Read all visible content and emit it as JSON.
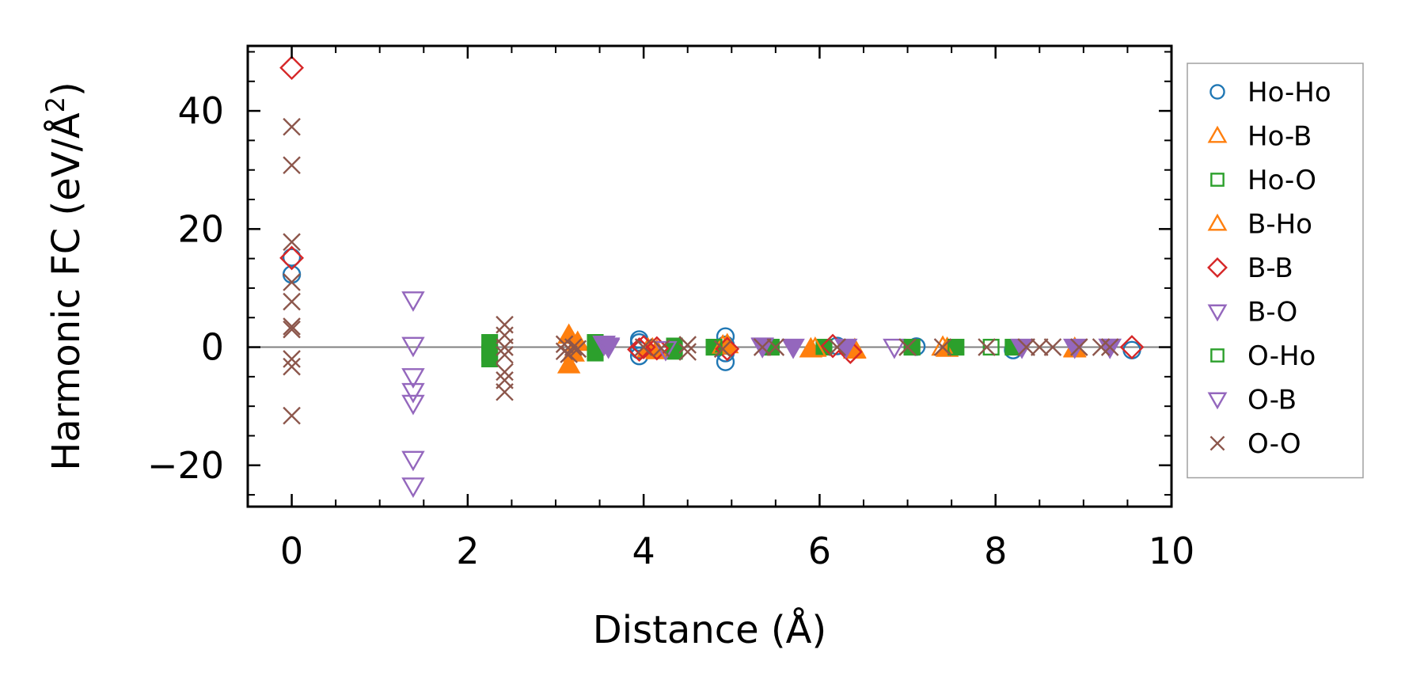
{
  "chart_data": {
    "type": "scatter",
    "title": "",
    "xlabel": "Distance (Å)",
    "ylabel": "Harmonic FC (eV/Å²)",
    "ylabel_parts": {
      "base": "Harmonic FC (eV/Å",
      "sup": "2",
      "close": ")"
    },
    "xlim": [
      -0.5,
      10
    ],
    "ylim": [
      -27,
      51
    ],
    "xticks": [
      0,
      2,
      4,
      6,
      8,
      10
    ],
    "xtick_labels": [
      "0",
      "2",
      "4",
      "6",
      "8",
      "10"
    ],
    "yticks": [
      -20,
      0,
      20,
      40
    ],
    "ytick_labels": [
      "−20",
      "0",
      "20",
      "40"
    ],
    "zero_line": true,
    "grid": false,
    "legend_position": "outside-right",
    "series": [
      {
        "name": "Ho-Ho",
        "marker": "circle",
        "filled": false,
        "color": "#1f77b4",
        "points": [
          [
            0,
            15.2
          ],
          [
            0,
            12.3
          ],
          [
            3.95,
            0.8
          ],
          [
            3.95,
            -0.5
          ],
          [
            3.95,
            -1.5
          ],
          [
            3.95,
            1.3
          ],
          [
            4.93,
            1.8
          ],
          [
            4.93,
            -2.5
          ],
          [
            4.93,
            0.4
          ],
          [
            4.93,
            -1.0
          ],
          [
            6.2,
            0.2
          ],
          [
            7.1,
            0.1
          ],
          [
            8.2,
            -0.5
          ],
          [
            9.55,
            -0.5
          ]
        ]
      },
      {
        "name": "Ho-B",
        "marker": "triangle-up",
        "filled": true,
        "color": "#ff7f0e",
        "points": [
          [
            3.15,
            2.0
          ],
          [
            3.15,
            -3.0
          ],
          [
            3.2,
            -1.0
          ],
          [
            3.25,
            0.8
          ],
          [
            4.05,
            -0.3
          ],
          [
            4.15,
            -0.6
          ],
          [
            4.95,
            0.4
          ],
          [
            5.9,
            -0.3
          ],
          [
            6.4,
            -0.5
          ],
          [
            7.45,
            -0.2
          ],
          [
            8.9,
            -0.2
          ]
        ]
      },
      {
        "name": "Ho-O",
        "marker": "square",
        "filled": true,
        "color": "#2ca02c",
        "points": [
          [
            2.25,
            -1.0
          ],
          [
            2.25,
            0.8
          ],
          [
            2.25,
            -2.0
          ],
          [
            3.45,
            -1.0
          ],
          [
            3.45,
            0.8
          ],
          [
            4.35,
            0.2
          ],
          [
            4.35,
            -0.7
          ],
          [
            4.8,
            0.0
          ],
          [
            5.45,
            0.0
          ],
          [
            6.05,
            0.0
          ],
          [
            7.05,
            0.0
          ],
          [
            7.55,
            0.0
          ],
          [
            8.2,
            0.0
          ]
        ]
      },
      {
        "name": "B-Ho",
        "marker": "triangle-up",
        "filled": false,
        "color": "#ff7f0e",
        "points": [
          [
            4.1,
            -0.3
          ],
          [
            4.9,
            0.2
          ],
          [
            5.95,
            -0.2
          ],
          [
            6.4,
            -0.4
          ],
          [
            7.4,
            0.0
          ],
          [
            8.9,
            -0.3
          ]
        ]
      },
      {
        "name": "B-B",
        "marker": "diamond",
        "filled": false,
        "color": "#d62728",
        "points": [
          [
            0,
            47.3
          ],
          [
            0,
            15.1
          ],
          [
            3.95,
            -0.4
          ],
          [
            4.0,
            0.0
          ],
          [
            4.15,
            -0.2
          ],
          [
            4.95,
            -0.3
          ],
          [
            6.15,
            0.2
          ],
          [
            6.35,
            -0.8
          ],
          [
            9.55,
            0.0
          ]
        ]
      },
      {
        "name": "B-O",
        "marker": "triangle-down",
        "filled": false,
        "color": "#9467bd",
        "points": [
          [
            1.38,
            8.0
          ],
          [
            1.38,
            0.3
          ],
          [
            1.38,
            -5.0
          ],
          [
            1.38,
            -7.5
          ],
          [
            1.38,
            -9.5
          ],
          [
            1.38,
            -19.0
          ],
          [
            1.38,
            -23.5
          ],
          [
            3.55,
            0.5
          ],
          [
            3.6,
            0.0
          ],
          [
            4.25,
            -0.4
          ],
          [
            5.35,
            0.2
          ],
          [
            6.85,
            0.0
          ],
          [
            9.3,
            0.0
          ]
        ]
      },
      {
        "name": "O-Ho",
        "marker": "square",
        "filled": false,
        "color": "#2ca02c",
        "points": [
          [
            4.8,
            0.0
          ],
          [
            5.45,
            0.0
          ],
          [
            7.05,
            0.0
          ],
          [
            7.55,
            0.0
          ],
          [
            7.95,
            0.0
          ],
          [
            8.2,
            0.0
          ]
        ]
      },
      {
        "name": "O-B",
        "marker": "triangle-down",
        "filled": true,
        "color": "#9467bd",
        "points": [
          [
            3.55,
            0.5
          ],
          [
            3.6,
            0.2
          ],
          [
            5.35,
            0.1
          ],
          [
            5.7,
            0.0
          ],
          [
            6.3,
            0.0
          ],
          [
            8.3,
            0.0
          ],
          [
            8.9,
            0.0
          ],
          [
            9.3,
            0.0
          ]
        ]
      },
      {
        "name": "O-O",
        "marker": "x",
        "filled": false,
        "color": "#8c564b",
        "points": [
          [
            0,
            37.3
          ],
          [
            0,
            30.8
          ],
          [
            0,
            17.8
          ],
          [
            0,
            11.0
          ],
          [
            0,
            7.7
          ],
          [
            0,
            3.5
          ],
          [
            0,
            3.0
          ],
          [
            0,
            -2.0
          ],
          [
            0,
            -3.3
          ],
          [
            0,
            -11.6
          ],
          [
            2.42,
            3.8
          ],
          [
            2.42,
            2.0
          ],
          [
            2.42,
            0.0
          ],
          [
            2.42,
            -1.3
          ],
          [
            2.42,
            -4.2
          ],
          [
            2.42,
            -5.6
          ],
          [
            2.42,
            -7.6
          ],
          [
            3.1,
            0.5
          ],
          [
            3.1,
            -0.7
          ],
          [
            3.15,
            -1.2
          ],
          [
            3.2,
            0.0
          ],
          [
            3.25,
            -0.3
          ],
          [
            4.0,
            0.0
          ],
          [
            4.2,
            -0.2
          ],
          [
            4.5,
            0.4
          ],
          [
            4.5,
            -0.8
          ],
          [
            4.9,
            -0.3
          ],
          [
            5.35,
            0.0
          ],
          [
            5.5,
            0.0
          ],
          [
            6.2,
            0.0
          ],
          [
            7.0,
            0.0
          ],
          [
            7.4,
            0.0
          ],
          [
            7.9,
            0.0
          ],
          [
            8.35,
            0.0
          ],
          [
            8.5,
            0.0
          ],
          [
            8.65,
            0.0
          ],
          [
            8.95,
            0.0
          ],
          [
            9.2,
            0.0
          ],
          [
            9.3,
            0.0
          ]
        ]
      }
    ]
  }
}
